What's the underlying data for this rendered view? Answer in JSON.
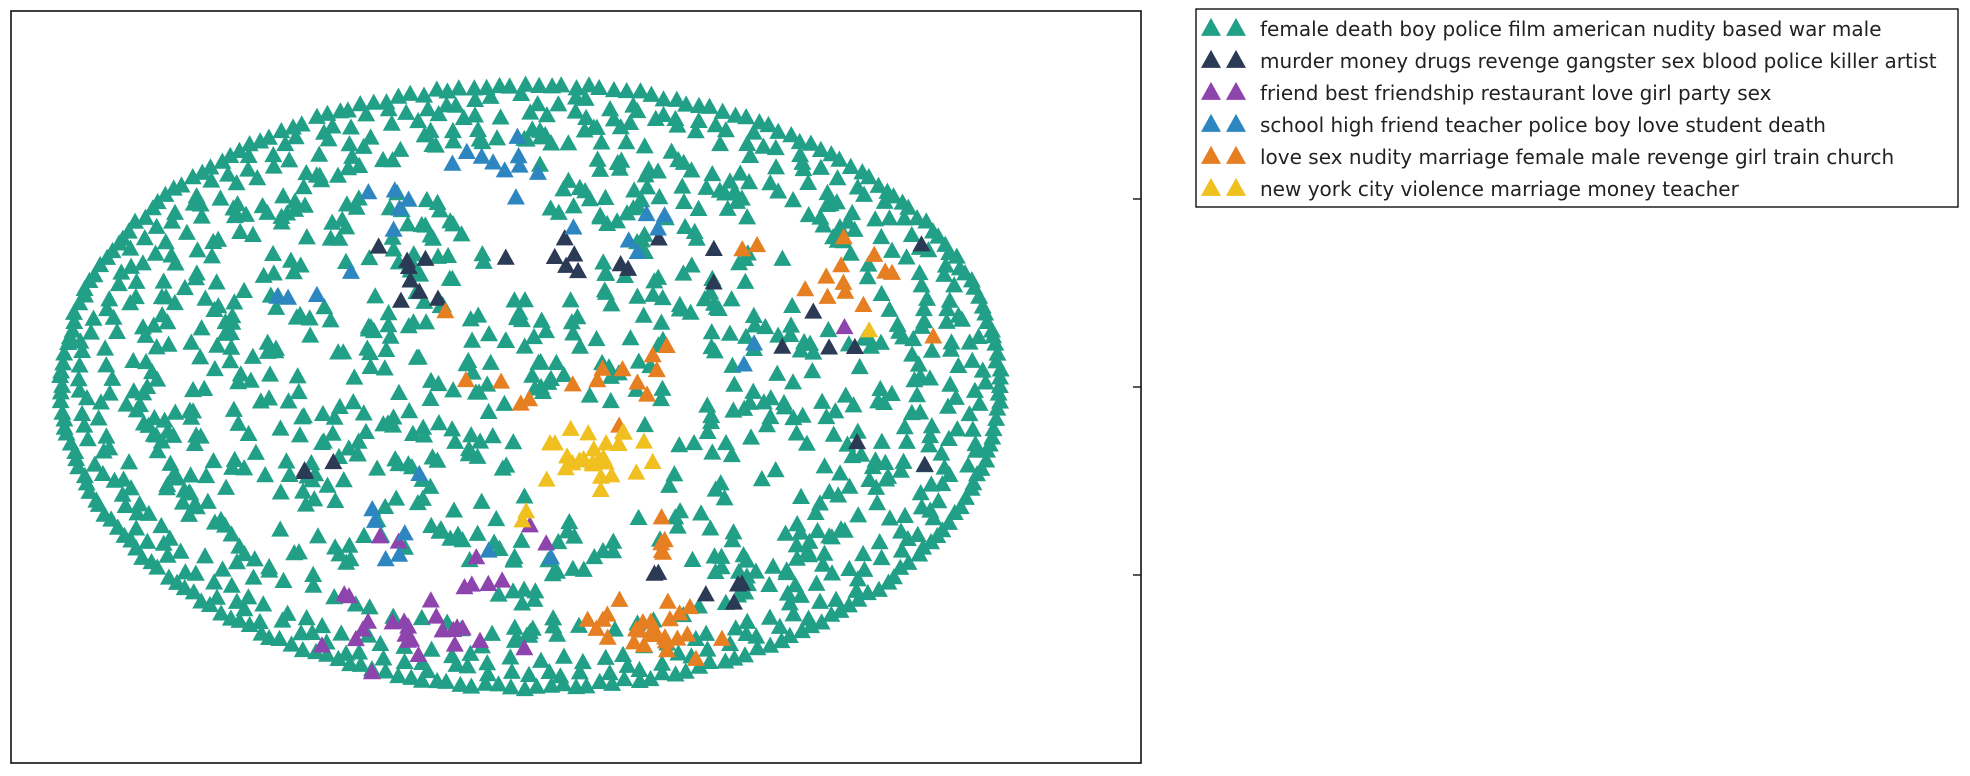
{
  "chart_data": {
    "type": "scatter",
    "marker": "triangle",
    "title": "",
    "xlabel": "",
    "ylabel": "",
    "xlim": [
      0,
      1
    ],
    "ylim": [
      0,
      1
    ],
    "y_ticks": [
      0.25,
      0.5,
      0.75
    ],
    "grid": false,
    "legend_position": "outside-top-right",
    "series": [
      {
        "name": "female death boy police film american nudity based war male",
        "color": "#22a087",
        "seed": 11,
        "clusters": []
      },
      {
        "name": "murder money drugs revenge gangster sex blood police killer artist",
        "color": "#2b3a55",
        "seed": 23,
        "clusters": [
          [
            0.48,
            0.67,
            0.05,
            0.04,
            8
          ],
          [
            0.34,
            0.65,
            0.05,
            0.04,
            8
          ],
          [
            0.62,
            0.23,
            0.04,
            0.03,
            4
          ],
          [
            0.74,
            0.55,
            0.06,
            0.04,
            4
          ],
          [
            0.28,
            0.39,
            0.04,
            0.03,
            3
          ],
          [
            0.58,
            0.67,
            0.04,
            0.03,
            3
          ],
          [
            0.57,
            0.24,
            0.03,
            0.02,
            2
          ],
          [
            0.82,
            0.7,
            0.02,
            0.02,
            1
          ],
          [
            0.77,
            0.41,
            0.03,
            0.03,
            2
          ]
        ]
      },
      {
        "name": "friend best friendship restaurant love girl party sex",
        "color": "#8e44ad",
        "seed": 37,
        "clusters": [
          [
            0.35,
            0.18,
            0.06,
            0.04,
            22
          ],
          [
            0.41,
            0.25,
            0.04,
            0.03,
            6
          ],
          [
            0.34,
            0.28,
            0.02,
            0.02,
            2
          ],
          [
            0.48,
            0.3,
            0.02,
            0.02,
            2
          ],
          [
            0.74,
            0.58,
            0.01,
            0.01,
            1
          ]
        ]
      },
      {
        "name": "school high friend teacher police boy love student death",
        "color": "#2e86c1",
        "seed": 53,
        "clusters": [
          [
            0.43,
            0.79,
            0.03,
            0.03,
            10
          ],
          [
            0.33,
            0.73,
            0.04,
            0.04,
            5
          ],
          [
            0.55,
            0.72,
            0.04,
            0.04,
            5
          ],
          [
            0.26,
            0.62,
            0.03,
            0.03,
            4
          ],
          [
            0.36,
            0.3,
            0.05,
            0.04,
            6
          ],
          [
            0.5,
            0.7,
            0.02,
            0.02,
            1
          ],
          [
            0.66,
            0.54,
            0.02,
            0.02,
            2
          ],
          [
            0.35,
            0.38,
            0.02,
            0.02,
            1
          ],
          [
            0.47,
            0.29,
            0.02,
            0.02,
            1
          ]
        ]
      },
      {
        "name": "love sex nudity marriage female male revenge girl train church",
        "color": "#e67e22",
        "seed": 71,
        "clusters": [
          [
            0.56,
            0.18,
            0.05,
            0.04,
            26
          ],
          [
            0.57,
            0.29,
            0.02,
            0.03,
            4
          ],
          [
            0.75,
            0.63,
            0.05,
            0.05,
            12
          ],
          [
            0.55,
            0.52,
            0.05,
            0.04,
            10
          ],
          [
            0.42,
            0.49,
            0.04,
            0.02,
            4
          ],
          [
            0.38,
            0.6,
            0.01,
            0.01,
            1
          ],
          [
            0.67,
            0.68,
            0.02,
            0.02,
            2
          ],
          [
            0.58,
            0.33,
            0.01,
            0.01,
            1
          ]
        ]
      },
      {
        "name": "new york city violence marriage money teacher",
        "color": "#f0c020",
        "seed": 97,
        "clusters": [
          [
            0.51,
            0.41,
            0.04,
            0.04,
            24
          ],
          [
            0.44,
            0.33,
            0.02,
            0.02,
            2
          ],
          [
            0.57,
            0.38,
            0.02,
            0.02,
            2
          ],
          [
            0.75,
            0.57,
            0.01,
            0.01,
            1
          ]
        ]
      }
    ]
  }
}
